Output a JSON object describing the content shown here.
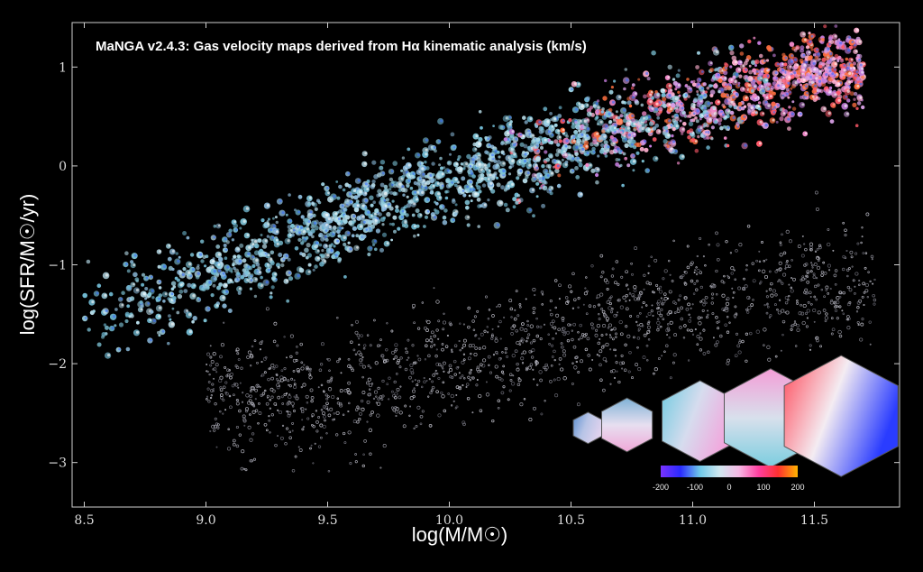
{
  "chart_data": {
    "type": "scatter",
    "title": "MaNGA v2.4.3: Gas velocity maps derived from Hα kinematic analysis (km/s)",
    "xlabel": "log(M/M☉)",
    "ylabel": "log(SFR/M☉/yr)",
    "xlim": [
      8.45,
      11.85
    ],
    "ylim": [
      -3.45,
      1.45
    ],
    "x_ticks": [
      8.5,
      9.0,
      9.5,
      10.0,
      10.5,
      11.0,
      11.5
    ],
    "x_tick_labels": [
      "8.5",
      "9.0",
      "9.5",
      "10.0",
      "10.5",
      "11.0",
      "11.5"
    ],
    "y_ticks": [
      -3,
      -2,
      -1,
      0,
      1
    ],
    "y_tick_labels": [
      "−3",
      "−2",
      "−1",
      "0",
      "1"
    ],
    "grid": false,
    "colorbar": {
      "label_values": [
        -200,
        -100,
        0,
        100,
        200
      ],
      "tick_labels": [
        "-200",
        "-100",
        "0",
        "100",
        "200"
      ],
      "colors": [
        "#7a33ff",
        "#2a2aff",
        "#6fc9e8",
        "#cfe7ef",
        "#f5b8e4",
        "#ff3fa0",
        "#ff3030",
        "#ffb400"
      ]
    },
    "star_forming_sequence": [
      {
        "x": 8.5,
        "y": -1.6
      },
      {
        "x": 9.0,
        "y": -1.1
      },
      {
        "x": 9.5,
        "y": -0.6
      },
      {
        "x": 10.0,
        "y": -0.15
      },
      {
        "x": 10.5,
        "y": 0.25
      },
      {
        "x": 11.0,
        "y": 0.6
      },
      {
        "x": 11.5,
        "y": 0.95
      }
    ],
    "quiescent_region": [
      {
        "x": 9.5,
        "y": -2.3
      },
      {
        "x": 10.0,
        "y": -2.0
      },
      {
        "x": 10.5,
        "y": -1.7
      },
      {
        "x": 11.0,
        "y": -1.4
      },
      {
        "x": 11.5,
        "y": -1.2
      }
    ],
    "example_maps": [
      {
        "x": 10.57,
        "y": -2.65,
        "size": 0.07,
        "pattern": "faint-blue"
      },
      {
        "x": 10.73,
        "y": -2.62,
        "size": 0.12,
        "pattern": "blue-pink"
      },
      {
        "x": 11.03,
        "y": -2.58,
        "size": 0.18,
        "pattern": "cyan-pink"
      },
      {
        "x": 11.32,
        "y": -2.55,
        "size": 0.22,
        "pattern": "pink-cyan"
      },
      {
        "x": 11.61,
        "y": -2.53,
        "size": 0.27,
        "pattern": "red-blue"
      }
    ]
  }
}
